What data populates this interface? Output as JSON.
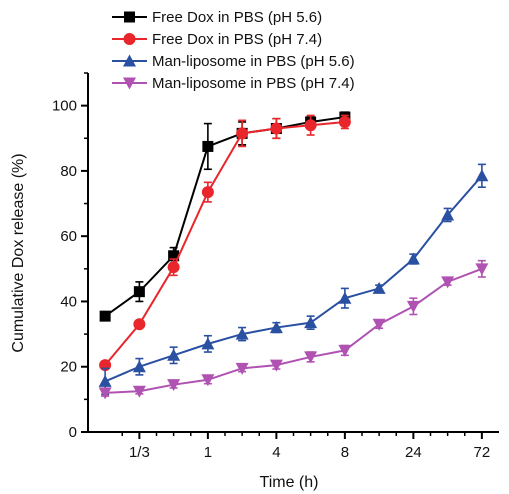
{
  "chart_data": {
    "type": "line",
    "title": "",
    "xlabel": "Time (h)",
    "ylabel": "Cumulative Dox release (%)",
    "ylim": [
      0,
      110
    ],
    "yticks": [
      0,
      20,
      40,
      60,
      80,
      100
    ],
    "x_tick_labels": [
      "1/3",
      "1",
      "4",
      "8",
      "24",
      "72"
    ],
    "x_tick_index": [
      1,
      3,
      5,
      7,
      9,
      11
    ],
    "x_points": [
      0.5,
      1,
      1.5,
      2,
      2.5,
      3,
      3.5,
      4,
      4.5,
      5,
      5.5,
      6,
      6.5,
      7,
      7.5,
      8,
      8.5,
      9,
      9.5,
      10,
      10.5,
      11
    ],
    "legend_position": "top-left",
    "grid": false,
    "series": [
      {
        "name": "Free Dox in PBS (pH 5.6)",
        "color": "#000000",
        "marker": "square",
        "x": [
          0,
          1,
          2,
          3,
          4,
          5,
          6,
          7
        ],
        "values": [
          35.5,
          43,
          54,
          87.5,
          91.5,
          93,
          95,
          96.5
        ],
        "errors": [
          0.8,
          3,
          2.5,
          7,
          3.5,
          3,
          1.5,
          1.5
        ]
      },
      {
        "name": "Free Dox in PBS (pH 7.4)",
        "color": "#e8262b",
        "marker": "circle",
        "x": [
          0,
          1,
          2,
          3,
          4,
          5,
          6,
          7
        ],
        "values": [
          20.5,
          33,
          50.5,
          73.5,
          91.5,
          93,
          94,
          95
        ],
        "errors": [
          1,
          0.8,
          2.5,
          3,
          4,
          3,
          3,
          2
        ]
      },
      {
        "name": "Man-liposome in PBS (pH 5.6)",
        "color": "#2a50a2",
        "marker": "triangle-up",
        "x": [
          0,
          1,
          2,
          3,
          4,
          5,
          6,
          7,
          8,
          9,
          10,
          11
        ],
        "values": [
          15.5,
          20,
          23.5,
          27,
          30,
          32,
          33.5,
          41,
          44,
          53,
          66.5,
          78.5
        ],
        "errors": [
          4,
          2.5,
          2.5,
          2.5,
          2,
          1.5,
          2,
          3,
          1,
          1.5,
          2,
          3.5
        ]
      },
      {
        "name": "Man-liposome in PBS (pH 7.4)",
        "color": "#b052b2",
        "marker": "triangle-down",
        "x": [
          0,
          1,
          2,
          3,
          4,
          5,
          6,
          7,
          8,
          9,
          10,
          11
        ],
        "values": [
          12,
          12.5,
          14.5,
          16,
          19.5,
          20.5,
          23,
          25,
          33,
          38.5,
          46,
          50
        ],
        "errors": [
          1,
          0.8,
          1,
          1.2,
          1,
          1.2,
          1.5,
          1.5,
          1.2,
          2.5,
          1,
          2.5
        ]
      }
    ]
  }
}
